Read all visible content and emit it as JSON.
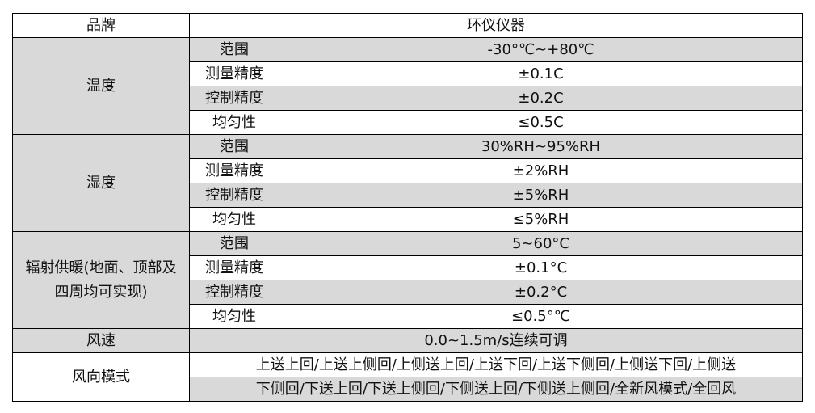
{
  "header": {
    "label": "品牌",
    "value": "环仪仪器"
  },
  "groups": [
    {
      "name": "温度",
      "rows": [
        {
          "label": "范围",
          "value": "-30°℃~+80℃"
        },
        {
          "label": "测量精度",
          "value": "±0.1C"
        },
        {
          "label": "控制精度",
          "value": "±0.2C"
        },
        {
          "label": "均匀性",
          "value": "≤0.5C"
        }
      ]
    },
    {
      "name": "湿度",
      "rows": [
        {
          "label": "范围",
          "value": "30%RH~95%RH"
        },
        {
          "label": "测量精度",
          "value": "±2%RH"
        },
        {
          "label": "控制精度",
          "value": "±5%RH"
        },
        {
          "label": "均匀性",
          "value": "≤5%RH"
        }
      ]
    },
    {
      "name_line1": "辐射供暖(地面、顶部及",
      "name_line2": "四周均可实现)",
      "rows": [
        {
          "label": "范围",
          "value": "5~60°C"
        },
        {
          "label": "测量精度",
          "value": "±0.1°C"
        },
        {
          "label": "控制精度",
          "value": "±0.2°C"
        },
        {
          "label": "均匀性",
          "value": "≤0.5°℃"
        }
      ]
    }
  ],
  "wind_speed": {
    "label": "风速",
    "value": "0.0~1.5m/s连续可调"
  },
  "wind_mode": {
    "label": "风向模式",
    "line1": "上送上回/上送上侧回/上侧送上回/上送下回/上送下侧回/上侧送下回/上侧送",
    "line2": "下侧回/下送上回/下送上侧回/下侧送上回/下侧送上侧回/全新风模式/全回风"
  },
  "colors": {
    "shade": "#d9d9d9",
    "border": "#000000"
  }
}
